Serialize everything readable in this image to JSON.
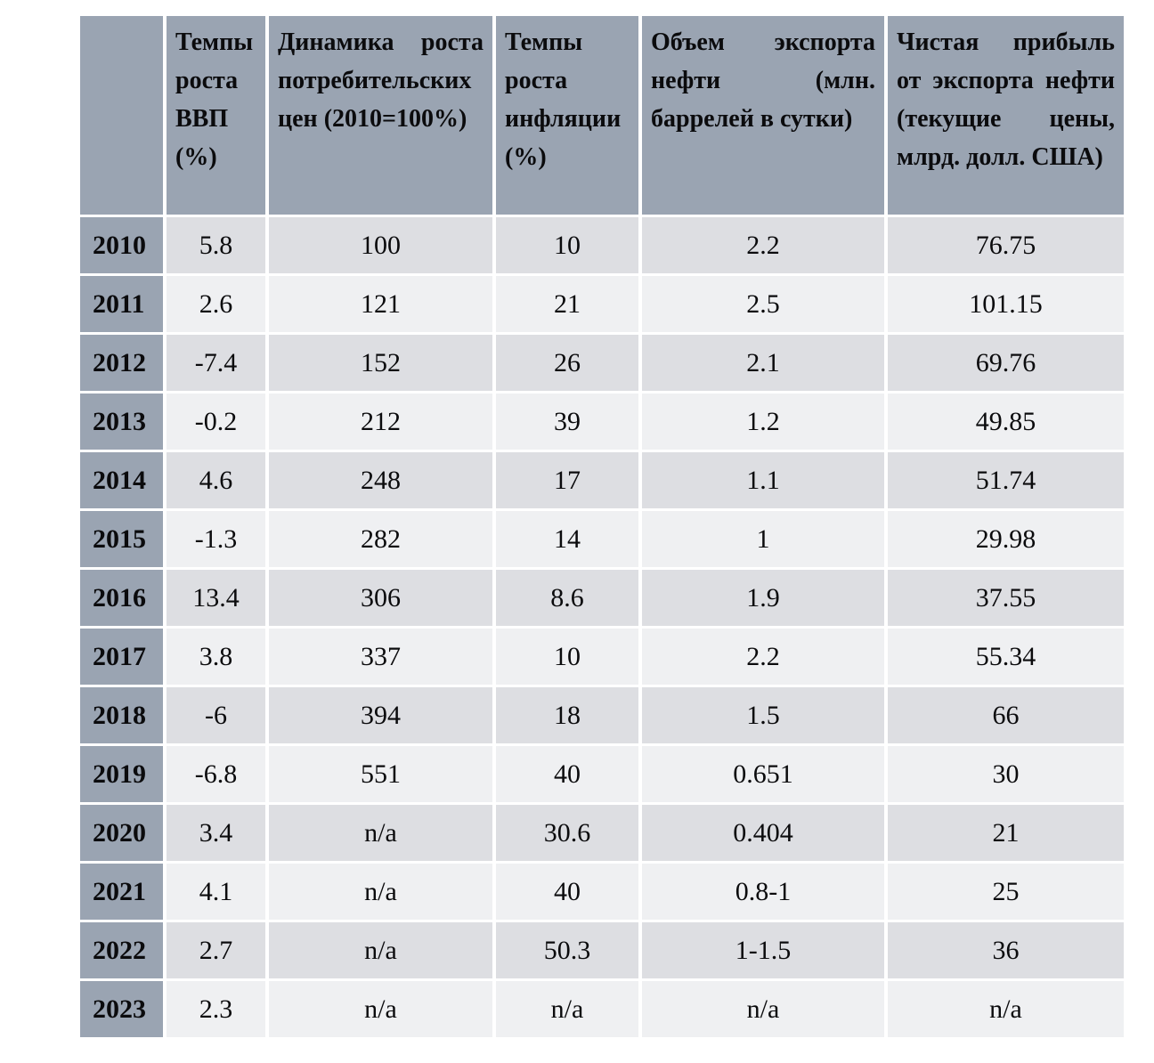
{
  "colors": {
    "header_bg": "#9aa4b2",
    "row_even_bg": "#dddee2",
    "row_odd_bg": "#eff0f2",
    "gap": "#ffffff",
    "text": "#0b0b0d"
  },
  "chart_data": {
    "type": "table",
    "title": "",
    "legend": "rows are years 2010-2023, header row darker blue-gray, body rows alternate light gray",
    "columns": [
      "",
      "Темпы роста ВВП (%)",
      "Динамика роста потребительских цен (2010=100%)",
      "Темпы роста инфляции (%)",
      "Объем экспорта нефти (млн. баррелей в сутки)",
      "Чистая прибыль от экспорта нефти (текущие цены, млрд. долл. США)"
    ],
    "rows": [
      {
        "year": "2010",
        "values": [
          "5.8",
          "100",
          "10",
          "2.2",
          "76.75"
        ]
      },
      {
        "year": "2011",
        "values": [
          "2.6",
          "121",
          "21",
          "2.5",
          "101.15"
        ]
      },
      {
        "year": "2012",
        "values": [
          "-7.4",
          "152",
          "26",
          "2.1",
          "69.76"
        ]
      },
      {
        "year": "2013",
        "values": [
          "-0.2",
          "212",
          "39",
          "1.2",
          "49.85"
        ]
      },
      {
        "year": "2014",
        "values": [
          "4.6",
          "248",
          "17",
          "1.1",
          "51.74"
        ]
      },
      {
        "year": "2015",
        "values": [
          "-1.3",
          "282",
          "14",
          "1",
          "29.98"
        ]
      },
      {
        "year": "2016",
        "values": [
          "13.4",
          "306",
          "8.6",
          "1.9",
          "37.55"
        ]
      },
      {
        "year": "2017",
        "values": [
          "3.8",
          "337",
          "10",
          "2.2",
          "55.34"
        ]
      },
      {
        "year": "2018",
        "values": [
          "-6",
          "394",
          "18",
          "1.5",
          "66"
        ]
      },
      {
        "year": "2019",
        "values": [
          "-6.8",
          "551",
          "40",
          "0.651",
          "30"
        ]
      },
      {
        "year": "2020",
        "values": [
          "3.4",
          "n/a",
          "30.6",
          "0.404",
          "21"
        ]
      },
      {
        "year": "2021",
        "values": [
          "4.1",
          "n/a",
          "40",
          "0.8-1",
          "25"
        ]
      },
      {
        "year": "2022",
        "values": [
          "2.7",
          "n/a",
          "50.3",
          "1-1.5",
          "36"
        ]
      },
      {
        "year": "2023",
        "values": [
          "2.3",
          "n/a",
          "n/a",
          "n/a",
          "n/a"
        ]
      }
    ]
  }
}
